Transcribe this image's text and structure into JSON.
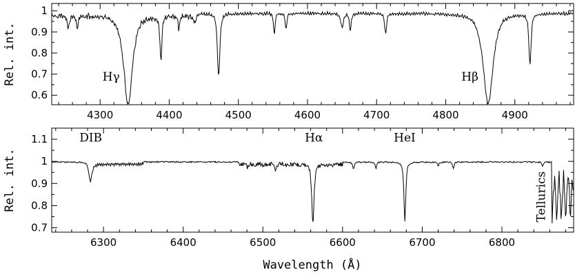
{
  "chart_data": [
    {
      "type": "line",
      "ylabel": "Rel. int.",
      "xlim": [
        4230,
        4985
      ],
      "ylim": [
        0.555,
        1.035
      ],
      "xticks": [
        4300,
        4400,
        4500,
        4600,
        4700,
        4800,
        4900
      ],
      "xtick_labels": [
        "4300",
        "4400",
        "4500",
        "4600",
        "4700",
        "4800",
        "4900"
      ],
      "yticks": [
        0.6,
        0.7,
        0.8,
        0.9,
        1.0
      ],
      "ytick_labels": [
        "0.6",
        "0.7",
        "0.8",
        "0.9",
        "1"
      ],
      "annotations": [
        {
          "text": "Hγ",
          "x": 4316,
          "y": 0.67
        },
        {
          "text": "Hβ",
          "x": 4835,
          "y": 0.67
        }
      ],
      "lines": [
        {
          "center": 4340.5,
          "depth": 0.43,
          "width": 7
        },
        {
          "center": 4861.3,
          "depth": 0.43,
          "width": 8
        },
        {
          "center": 4388,
          "depth": 0.22,
          "width": 1.5
        },
        {
          "center": 4471.5,
          "depth": 0.3,
          "width": 2
        },
        {
          "center": 4921.9,
          "depth": 0.24,
          "width": 1.8
        },
        {
          "center": 4552,
          "depth": 0.1,
          "width": 1.2
        },
        {
          "center": 4569,
          "depth": 0.08,
          "width": 1.2
        },
        {
          "center": 4650,
          "depth": 0.07,
          "width": 2
        },
        {
          "center": 4662,
          "depth": 0.08,
          "width": 1.5
        },
        {
          "center": 4713,
          "depth": 0.1,
          "width": 1.5
        },
        {
          "center": 4437,
          "depth": 0.04,
          "width": 1.5
        },
        {
          "center": 4414,
          "depth": 0.06,
          "width": 1.5
        },
        {
          "center": 4254,
          "depth": 0.06,
          "width": 1.5
        },
        {
          "center": 4267,
          "depth": 0.05,
          "width": 1.5
        }
      ]
    },
    {
      "type": "line",
      "xlabel": "Wavelength (Å)",
      "ylabel": "Rel. int.",
      "xlim": [
        6235,
        6890
      ],
      "ylim": [
        0.68,
        1.15
      ],
      "xticks": [
        6300,
        6400,
        6500,
        6600,
        6700,
        6800
      ],
      "xtick_labels": [
        "6300",
        "6400",
        "6500",
        "6600",
        "6700",
        "6800"
      ],
      "yticks": [
        0.7,
        0.8,
        0.9,
        1.0,
        1.1
      ],
      "ytick_labels": [
        "0.7",
        "0.8",
        "0.9",
        "1",
        "1.1"
      ],
      "annotations": [
        {
          "text": "DIB",
          "x": 6284,
          "y": 1.09
        },
        {
          "text": "Hα",
          "x": 6564,
          "y": 1.09
        },
        {
          "text": "HeI",
          "x": 6678,
          "y": 1.09
        },
        {
          "text": "Tellurics",
          "x": 6854,
          "y": 0.84,
          "rotate": -90
        }
      ],
      "lines": [
        {
          "center": 6562.8,
          "depth": 0.27,
          "width": 1.6
        },
        {
          "center": 6678.2,
          "depth": 0.27,
          "width": 1.3
        },
        {
          "center": 6283.5,
          "depth": 0.09,
          "width": 2
        },
        {
          "center": 6613.6,
          "depth": 0.03,
          "width": 1.2
        },
        {
          "center": 6516,
          "depth": 0.03,
          "width": 1
        },
        {
          "center": 6481,
          "depth": 0.02,
          "width": 1
        },
        {
          "center": 6642,
          "depth": 0.03,
          "width": 1
        },
        {
          "center": 6720,
          "depth": 0.02,
          "width": 1
        },
        {
          "center": 6739,
          "depth": 0.03,
          "width": 1
        },
        {
          "center": 6851,
          "depth": 0.02,
          "width": 1
        }
      ]
    }
  ]
}
